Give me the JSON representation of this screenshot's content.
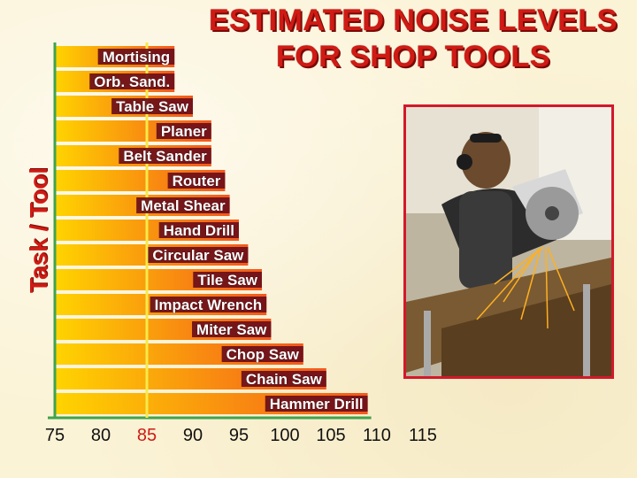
{
  "chart_data": {
    "type": "bar",
    "orientation": "horizontal",
    "title": "ESTIMATED NOISE LEVELS FOR SHOP TOOLS",
    "title_lines": [
      "ESTIMATED NOISE LEVELS",
      "FOR SHOP TOOLS"
    ],
    "ylabel": "Task / Tool",
    "xlabel": "",
    "categories": [
      "Mortising",
      "Orb. Sand.",
      "Table Saw",
      "Planer",
      "Belt Sander",
      "Router",
      "Metal Shear",
      "Hand Drill",
      "Circular Saw",
      "Tile Saw",
      "Impact Wrench",
      "Miter Saw",
      "Chop Saw",
      "Chain Saw",
      "Hammer Drill"
    ],
    "values": [
      88,
      88,
      90,
      92,
      92,
      93.5,
      94,
      95,
      96,
      97.5,
      98,
      98.5,
      102,
      104.5,
      109
    ],
    "xticks": [
      75,
      80,
      85,
      90,
      95,
      100,
      105,
      110,
      115
    ],
    "xlim": [
      75,
      115
    ],
    "reference_line": 85,
    "grid": false,
    "legend": "none"
  },
  "colors": {
    "bar_start": "#ffd400",
    "bar_end": "#f4581c",
    "axis_green": "#3fa34d",
    "reference_yellow": "#f4ea4a",
    "label_box": "#6a0e1a",
    "title_red": "#d01a14",
    "photo_border": "#d3182a"
  },
  "photo": {
    "icon": "worker-with-circular-saw-photo"
  }
}
